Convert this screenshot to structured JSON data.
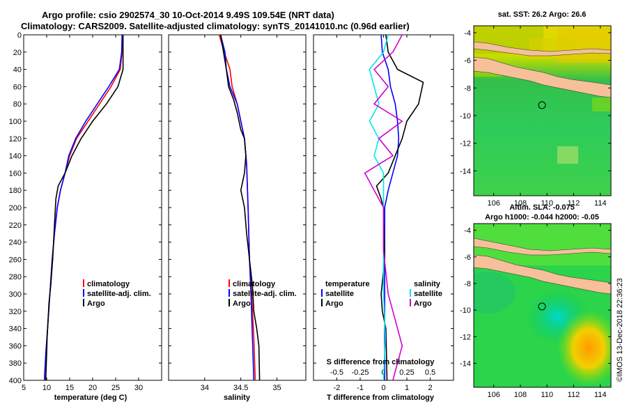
{
  "titles": {
    "line1": "Argo profile: csio 2902574_30 10-Oct-2014 9.49S 109.54E (NRT data)",
    "line2": "Climatology: CARS2009. Satellite-adjusted climatology: synTS_20141010.nc (0.96d earlier)"
  },
  "colors": {
    "climatology": "#ff0000",
    "satellite_adj": "#0000ff",
    "argo": "#000000",
    "sat_salinity": "#00e5ee",
    "salinity_diff": "#d000d0",
    "land": "#f5c09a"
  },
  "chart_data": [
    {
      "type": "line",
      "name": "temperature",
      "xlabel": "temperature (deg C)",
      "ylabel": "",
      "xlim": [
        5,
        35
      ],
      "ylim": [
        0,
        400
      ],
      "xticks": [
        5,
        10,
        15,
        20,
        25,
        30
      ],
      "yticks": [
        0,
        20,
        40,
        60,
        80,
        100,
        120,
        140,
        160,
        180,
        200,
        220,
        240,
        260,
        280,
        300,
        320,
        340,
        360,
        380,
        400
      ],
      "legend": [
        "climatology",
        "satellite-adj. clim.",
        "Argo"
      ],
      "series": [
        {
          "name": "climatology",
          "color_key": "climatology",
          "points": [
            [
              26.5,
              0
            ],
            [
              26.4,
              20
            ],
            [
              26,
              40
            ],
            [
              24,
              60
            ],
            [
              21.5,
              80
            ],
            [
              19,
              100
            ],
            [
              16.5,
              120
            ],
            [
              15,
              140
            ],
            [
              14,
              160
            ],
            [
              13,
              180
            ],
            [
              12.3,
              200
            ],
            [
              11.7,
              230
            ],
            [
              11.2,
              260
            ],
            [
              10.7,
              300
            ],
            [
              10.2,
              340
            ],
            [
              9.8,
              370
            ],
            [
              9.5,
              400
            ]
          ]
        },
        {
          "name": "satellite-adj. clim.",
          "color_key": "satellite_adj",
          "points": [
            [
              26.4,
              0
            ],
            [
              26.3,
              20
            ],
            [
              25.8,
              40
            ],
            [
              23.5,
              60
            ],
            [
              21,
              80
            ],
            [
              18.5,
              100
            ],
            [
              16.3,
              120
            ],
            [
              14.8,
              140
            ],
            [
              14,
              160
            ],
            [
              13,
              180
            ],
            [
              12.3,
              200
            ],
            [
              11.7,
              230
            ],
            [
              11.2,
              260
            ],
            [
              10.7,
              300
            ],
            [
              10.2,
              340
            ],
            [
              9.8,
              370
            ],
            [
              9.5,
              400
            ]
          ]
        },
        {
          "name": "Argo",
          "color_key": "argo",
          "points": [
            [
              26.6,
              0
            ],
            [
              26.6,
              20
            ],
            [
              26.6,
              40
            ],
            [
              25.5,
              60
            ],
            [
              23,
              80
            ],
            [
              20,
              100
            ],
            [
              17.5,
              120
            ],
            [
              15.5,
              140
            ],
            [
              14,
              160
            ],
            [
              12.5,
              175
            ],
            [
              12,
              190
            ],
            [
              11.7,
              220
            ],
            [
              11.3,
              260
            ],
            [
              10.9,
              290
            ],
            [
              10.5,
              310
            ],
            [
              10.1,
              350
            ],
            [
              9.8,
              400
            ]
          ]
        }
      ]
    },
    {
      "type": "line",
      "name": "salinity",
      "xlabel": "salinity",
      "ylabel": "",
      "xlim": [
        33.5,
        35.4
      ],
      "ylim": [
        0,
        400
      ],
      "xticks": [
        34,
        34.5,
        35
      ],
      "legend": [
        "climatology",
        "satellite-adj. clim.",
        "Argo"
      ],
      "series": [
        {
          "name": "climatology",
          "color_key": "climatology",
          "points": [
            [
              34.2,
              0
            ],
            [
              34.27,
              20
            ],
            [
              34.35,
              40
            ],
            [
              34.38,
              60
            ],
            [
              34.45,
              80
            ],
            [
              34.5,
              100
            ],
            [
              34.55,
              120
            ],
            [
              34.58,
              150
            ],
            [
              34.6,
              200
            ],
            [
              34.62,
              260
            ],
            [
              34.65,
              300
            ],
            [
              34.68,
              350
            ],
            [
              34.7,
              400
            ]
          ]
        },
        {
          "name": "satellite-adj. clim.",
          "color_key": "satellite_adj",
          "points": [
            [
              34.22,
              0
            ],
            [
              34.28,
              20
            ],
            [
              34.3,
              40
            ],
            [
              34.35,
              60
            ],
            [
              34.45,
              80
            ],
            [
              34.5,
              100
            ],
            [
              34.55,
              120
            ],
            [
              34.58,
              150
            ],
            [
              34.6,
              200
            ],
            [
              34.62,
              260
            ],
            [
              34.64,
              300
            ],
            [
              34.66,
              350
            ],
            [
              34.68,
              400
            ]
          ]
        },
        {
          "name": "Argo",
          "color_key": "argo",
          "points": [
            [
              34.22,
              0
            ],
            [
              34.26,
              20
            ],
            [
              34.3,
              40
            ],
            [
              34.33,
              60
            ],
            [
              34.4,
              75
            ],
            [
              34.45,
              90
            ],
            [
              34.5,
              110
            ],
            [
              34.55,
              120
            ],
            [
              34.57,
              140
            ],
            [
              34.55,
              160
            ],
            [
              34.5,
              180
            ],
            [
              34.55,
              200
            ],
            [
              34.58,
              230
            ],
            [
              34.62,
              260
            ],
            [
              34.66,
              290
            ],
            [
              34.68,
              320
            ],
            [
              34.72,
              340
            ],
            [
              34.75,
              360
            ],
            [
              34.76,
              400
            ]
          ]
        }
      ]
    },
    {
      "type": "line",
      "name": "differences",
      "xlabel": "T difference from climatology",
      "xlabel2": "S difference from climatology",
      "xlim": [
        -3,
        3
      ],
      "ylim": [
        0,
        400
      ],
      "xticks_T": [
        -2,
        -1,
        0,
        1,
        2
      ],
      "xticks_S": [
        -0.5,
        -0.25,
        0,
        0.25,
        0.5
      ],
      "legend_temperature": [
        "temperature",
        "satellite",
        "Argo"
      ],
      "legend_salinity": [
        "salinity",
        "satellite",
        "Argo"
      ],
      "series": [
        {
          "name": "T satellite",
          "color_key": "satellite_adj",
          "points": [
            [
              -0.1,
              0
            ],
            [
              -0.05,
              20
            ],
            [
              0.2,
              40
            ],
            [
              0.3,
              60
            ],
            [
              0.5,
              80
            ],
            [
              0.6,
              100
            ],
            [
              0.65,
              120
            ],
            [
              0.6,
              140
            ],
            [
              0.4,
              160
            ],
            [
              0.2,
              180
            ],
            [
              0.05,
              200
            ],
            [
              0.05,
              250
            ],
            [
              0.05,
              300
            ],
            [
              0.05,
              400
            ]
          ]
        },
        {
          "name": "T Argo",
          "color_key": "argo",
          "points": [
            [
              0.1,
              0
            ],
            [
              0.2,
              20
            ],
            [
              0.6,
              40
            ],
            [
              1.7,
              55
            ],
            [
              1.5,
              80
            ],
            [
              1.0,
              100
            ],
            [
              0.8,
              120
            ],
            [
              0.5,
              140
            ],
            [
              0.2,
              160
            ],
            [
              -0.3,
              175
            ],
            [
              -0.1,
              190
            ],
            [
              0.0,
              200
            ],
            [
              0.05,
              260
            ],
            [
              -0.1,
              300
            ],
            [
              -0.05,
              320
            ],
            [
              0.1,
              340
            ],
            [
              0.15,
              400
            ]
          ]
        },
        {
          "name": "S satellite",
          "color_key": "sat_salinity",
          "points": [
            [
              0.05,
              0
            ],
            [
              0,
              20
            ],
            [
              -0.15,
              40
            ],
            [
              -0.1,
              60
            ],
            [
              -0.05,
              80
            ],
            [
              -0.15,
              100
            ],
            [
              -0.05,
              120
            ],
            [
              -0.1,
              140
            ],
            [
              0,
              160
            ],
            [
              0,
              200
            ],
            [
              0,
              250
            ],
            [
              0,
              300
            ],
            [
              0.02,
              350
            ],
            [
              0,
              400
            ]
          ]
        },
        {
          "name": "S Argo",
          "color_key": "salinity_diff",
          "points": [
            [
              0.2,
              0
            ],
            [
              0.1,
              20
            ],
            [
              -0.1,
              40
            ],
            [
              0.05,
              60
            ],
            [
              -0.1,
              80
            ],
            [
              0.2,
              100
            ],
            [
              -0.05,
              120
            ],
            [
              0.1,
              140
            ],
            [
              -0.2,
              160
            ],
            [
              -0.1,
              180
            ],
            [
              0,
              200
            ],
            [
              0,
              250
            ],
            [
              0.05,
              300
            ],
            [
              0.15,
              340
            ],
            [
              0.2,
              360
            ],
            [
              0.1,
              400
            ]
          ]
        }
      ]
    },
    {
      "type": "heatmap",
      "name": "sst-map",
      "title": "sat. SST: 26.2  Argo: 26.6",
      "xlim": [
        104.5,
        114.8
      ],
      "ylim": [
        -15.8,
        -3.5
      ],
      "xticks": [
        106,
        108,
        110,
        112,
        114
      ],
      "yticks": [
        -4,
        -6,
        -8,
        -10,
        -12,
        -14
      ],
      "argo_location": [
        109.54,
        -9.49
      ]
    },
    {
      "type": "heatmap",
      "name": "sla-map",
      "title": "Altim. SLA: -0.075",
      "subtitle": "Argo h1000: -0.044 h2000: -0.05",
      "xlim": [
        104.5,
        114.8
      ],
      "ylim": [
        -15.8,
        -3.5
      ],
      "xticks": [
        106,
        108,
        110,
        112,
        114
      ],
      "yticks": [
        -4,
        -6,
        -8,
        -10,
        -12,
        -14
      ],
      "argo_location": [
        109.54,
        -9.49
      ]
    }
  ],
  "watermark": "©IMOS 13-Dec-2018 22:36:23"
}
